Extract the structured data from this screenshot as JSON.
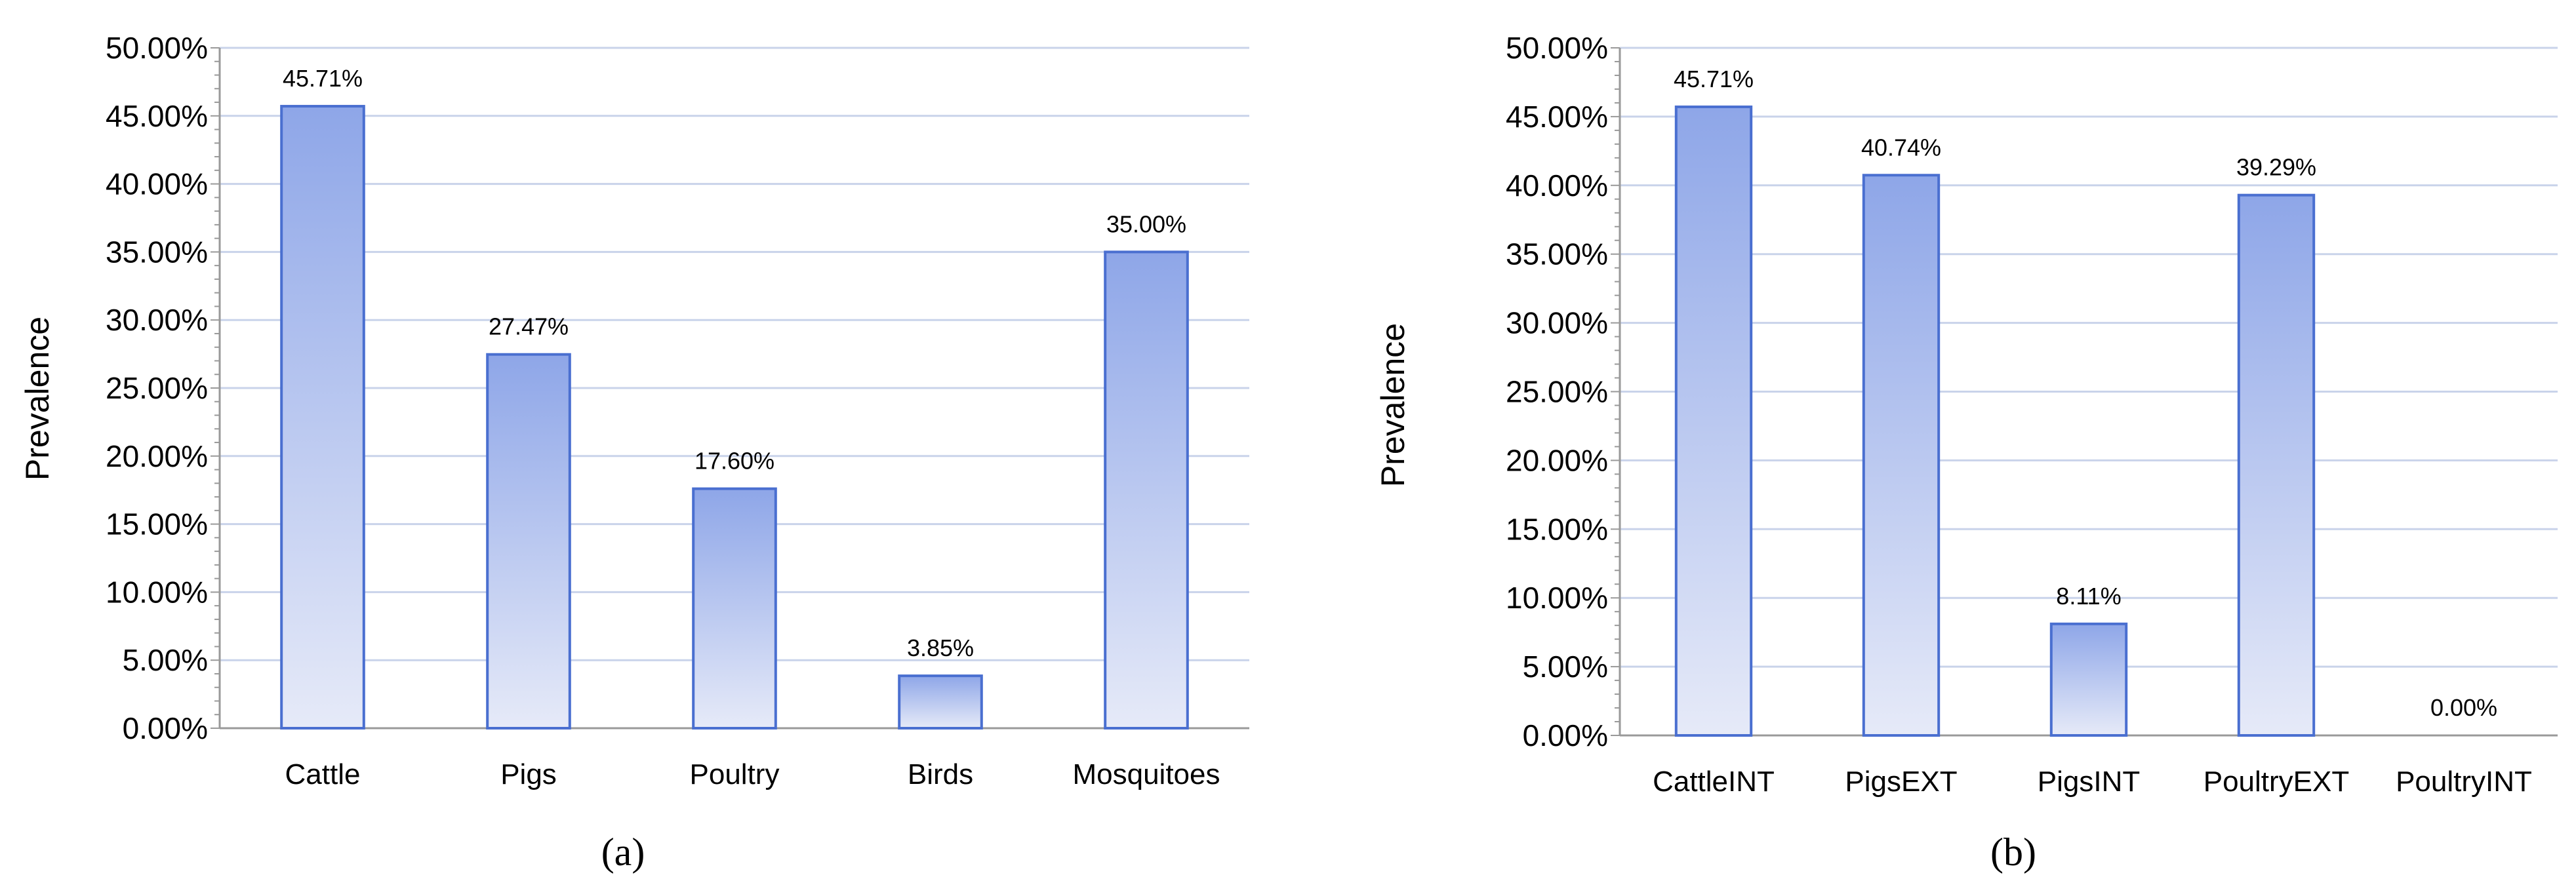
{
  "chart_data": [
    {
      "type": "bar",
      "panel_label": "(a)",
      "categories": [
        "Cattle",
        "Pigs",
        "Poultry",
        "Birds",
        "Mosquitoes"
      ],
      "values": [
        45.71,
        27.47,
        17.6,
        3.85,
        35.0
      ],
      "data_labels": [
        "45.71%",
        "27.47%",
        "17.60%",
        "3.85%",
        "35.00%"
      ],
      "ylabel": "Prevalence",
      "ylim": [
        0,
        50
      ],
      "yticks": [
        "0.00%",
        "5.00%",
        "10.00%",
        "15.00%",
        "20.00%",
        "25.00%",
        "30.00%",
        "35.00%",
        "40.00%",
        "45.00%",
        "50.00%"
      ],
      "grid": true,
      "bar_color": "#8ea6e8"
    },
    {
      "type": "bar",
      "panel_label": "(b)",
      "categories": [
        "CattleINT",
        "PigsEXT",
        "PigsINT",
        "PoultryEXT",
        "PoultryINT"
      ],
      "values": [
        45.71,
        40.74,
        8.11,
        39.29,
        0.0
      ],
      "data_labels": [
        "45.71%",
        "40.74%",
        "8.11%",
        "39.29%",
        "0.00%"
      ],
      "ylabel": "Prevalence",
      "ylim": [
        0,
        50
      ],
      "yticks": [
        "0.00%",
        "5.00%",
        "10.00%",
        "15.00%",
        "20.00%",
        "25.00%",
        "30.00%",
        "35.00%",
        "40.00%",
        "45.00%",
        "50.00%"
      ],
      "grid": true,
      "bar_color": "#8ea6e8"
    }
  ]
}
